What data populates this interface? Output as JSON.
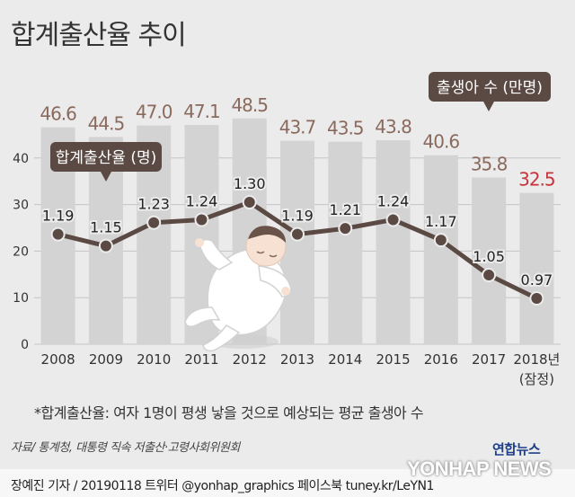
{
  "title": "합계출산율 추이",
  "footnote": "*합계출산율: 여자 1명이 평생 낳을 것으로 예상되는 평균 출생아 수",
  "source": "자료/ 통계청, 대통령 직속 저출산·고령사회위원회",
  "credit": "장예진 기자 / 20190118 트위터 @yonhap_graphics 페이스북 tuney.kr/LeYN1",
  "brand": {
    "ko": "연합뉴스",
    "en": "YONHAP NEWS"
  },
  "chart_data": {
    "type": "bar",
    "categories": [
      "2008",
      "2009",
      "2010",
      "2011",
      "2012",
      "2013",
      "2014",
      "2015",
      "2016",
      "2017",
      "2018년"
    ],
    "category_sublabels": [
      "",
      "",
      "",
      "",
      "",
      "",
      "",
      "",
      "",
      "",
      "(잠정)"
    ],
    "ylim": [
      0,
      50
    ],
    "yticks": [
      0,
      10,
      20,
      30,
      40
    ],
    "series": [
      {
        "name": "출생아 수 (만명)",
        "type": "bar",
        "values": [
          46.6,
          44.5,
          47.0,
          47.1,
          48.5,
          43.7,
          43.5,
          43.8,
          40.6,
          35.8,
          32.5
        ],
        "labels": [
          "46.6",
          "44.5",
          "47.0",
          "47.1",
          "48.5",
          "43.7",
          "43.5",
          "43.8",
          "40.6",
          "35.8",
          "32.5"
        ]
      },
      {
        "name": "합계출산율 (명)",
        "type": "line",
        "values": [
          1.19,
          1.15,
          1.23,
          1.24,
          1.3,
          1.19,
          1.21,
          1.24,
          1.17,
          1.05,
          0.97
        ],
        "labels": [
          "1.19",
          "1.15",
          "1.23",
          "1.24",
          "1.30",
          "1.19",
          "1.21",
          "1.24",
          "1.17",
          "1.05",
          "0.97"
        ]
      }
    ],
    "colors": {
      "bar": "#d3d3d3",
      "line": "#5b4a44",
      "bar_label": "#8b6a5e",
      "bar_label_highlight": "#c8323b",
      "axis_text": "#333333",
      "grid": "#c4c4c4"
    }
  }
}
